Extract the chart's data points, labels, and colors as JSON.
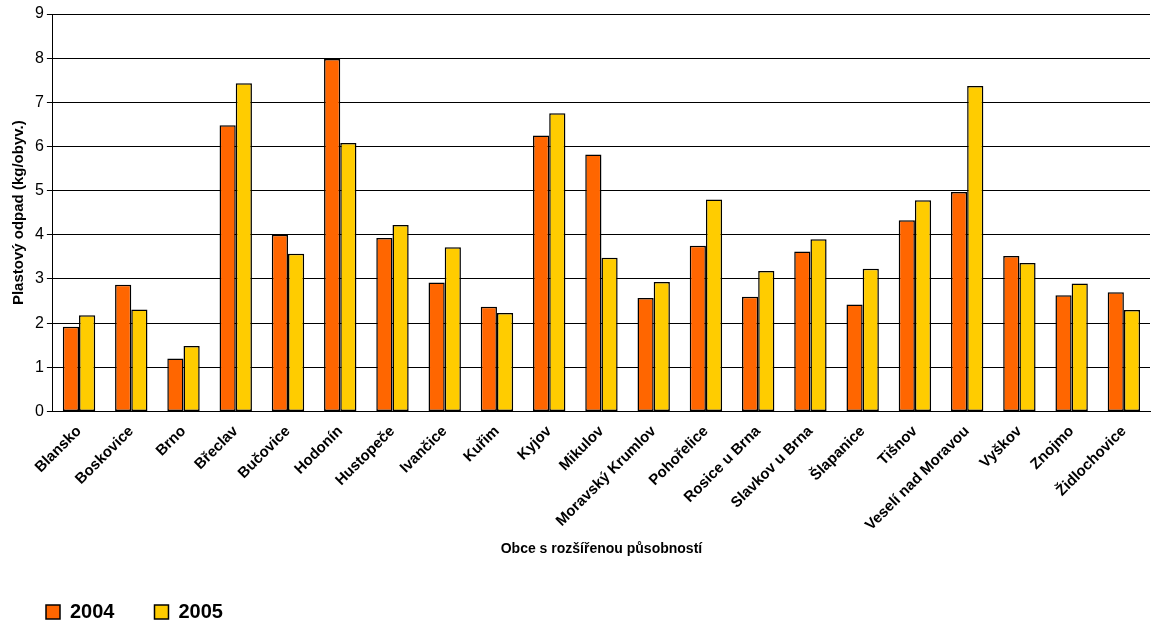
{
  "chart_data": {
    "type": "bar",
    "xlabel": "Obce s rozšířenou působností",
    "ylabel": "Plastový odpad (kg/obyv.)",
    "categories": [
      "Blansko",
      "Boskovice",
      "Brno",
      "Břeclav",
      "Bučovice",
      "Hodonín",
      "Hustopeče",
      "Ivančice",
      "Kuřim",
      "Kyjov",
      "Mikulov",
      "Moravský Krumlov",
      "Pohořelice",
      "Rosice u Brna",
      "Slavkov u Brna",
      "Šlapanice",
      "Tišnov",
      "Veselí nad Moravou",
      "Vyškov",
      "Znojmo",
      "Židlochovice"
    ],
    "series": [
      {
        "name": "2004",
        "color": "#ff6600",
        "values": [
          1.92,
          2.87,
          1.2,
          6.48,
          4.0,
          7.98,
          3.93,
          2.92,
          2.37,
          6.25,
          5.82,
          2.57,
          3.75,
          2.6,
          3.62,
          2.42,
          4.33,
          4.97,
          3.52,
          2.63,
          2.7
        ]
      },
      {
        "name": "2005",
        "color": "#ffcc00",
        "values": [
          2.18,
          2.31,
          1.48,
          7.43,
          3.57,
          6.08,
          4.22,
          3.72,
          2.23,
          6.75,
          3.48,
          2.93,
          4.8,
          3.18,
          3.9,
          3.23,
          4.78,
          7.37,
          3.36,
          2.9,
          2.3
        ]
      }
    ],
    "ylim": [
      0,
      9
    ],
    "yticks": [
      0,
      1,
      2,
      3,
      4,
      5,
      6,
      7,
      8,
      9
    ],
    "grid": "y",
    "legend": "bottom left"
  }
}
